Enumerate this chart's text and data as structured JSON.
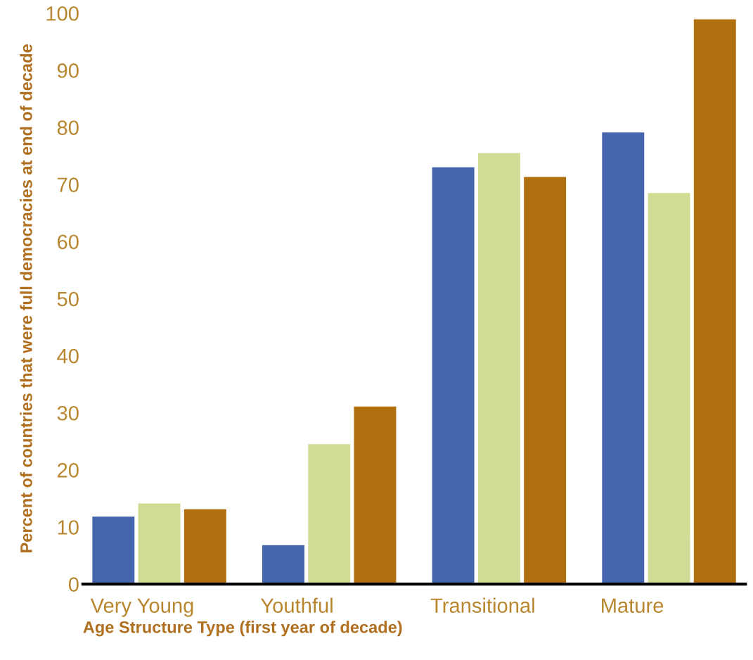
{
  "chart_data": {
    "type": "bar",
    "categories": [
      "Very Young",
      "Youthful",
      "Transitional",
      "Mature"
    ],
    "series": [
      {
        "color": "#4565ad",
        "values": [
          11.9,
          6.9,
          73.1,
          79.2
        ]
      },
      {
        "color": "#d2db94",
        "values": [
          14.2,
          24.6,
          75.6,
          68.6
        ]
      },
      {
        "color": "#b0700f",
        "values": [
          13.2,
          31.2,
          71.4,
          99.0
        ]
      }
    ],
    "xlabel": "Age Structure Type (first year of decade)",
    "ylabel": "Percent of countries that were full democracies at end of decade",
    "ylim": [
      0,
      100
    ],
    "yticks": [
      0,
      10,
      20,
      30,
      40,
      50,
      60,
      70,
      80,
      90,
      100
    ],
    "grid": false,
    "legend": false
  }
}
